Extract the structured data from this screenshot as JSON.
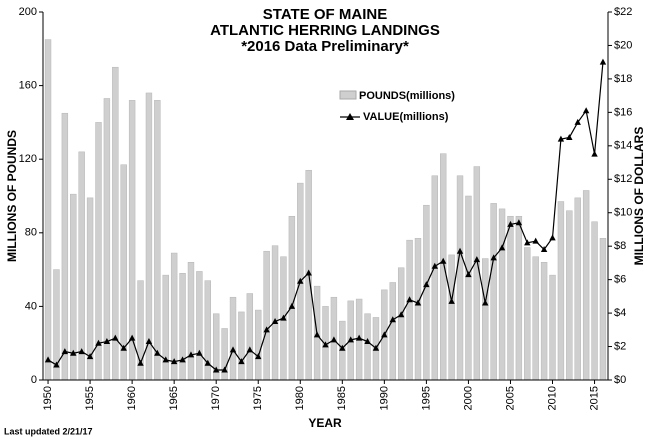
{
  "chart_data": {
    "type": "bar-line",
    "title": [
      "STATE OF MAINE",
      "ATLANTIC HERRING LANDINGS",
      "*2016 Data Preliminary*"
    ],
    "x_label": "YEAR",
    "y_label": "MILLIONS OF POUNDS",
    "y2_label": "MILLIONS OF DOLLARS",
    "note": "Last updated 2/21/17",
    "x": [
      1950,
      1951,
      1952,
      1953,
      1954,
      1955,
      1956,
      1957,
      1958,
      1959,
      1960,
      1961,
      1962,
      1963,
      1964,
      1965,
      1966,
      1967,
      1968,
      1969,
      1970,
      1971,
      1972,
      1973,
      1974,
      1975,
      1976,
      1977,
      1978,
      1979,
      1980,
      1981,
      1982,
      1983,
      1984,
      1985,
      1986,
      1987,
      1988,
      1989,
      1990,
      1991,
      1992,
      1993,
      1994,
      1995,
      1996,
      1997,
      1998,
      1999,
      2000,
      2001,
      2002,
      2003,
      2004,
      2005,
      2006,
      2007,
      2008,
      2009,
      2010,
      2011,
      2012,
      2013,
      2014,
      2015,
      2016
    ],
    "xlim": [
      1949.4,
      2016.6
    ],
    "xticks": [
      1950,
      1955,
      1960,
      1965,
      1970,
      1975,
      1980,
      1985,
      1990,
      1995,
      2000,
      2005,
      2010,
      2015
    ],
    "ylim": [
      0,
      200
    ],
    "yticks": [
      0,
      40,
      80,
      120,
      160,
      200
    ],
    "y2lim": [
      0,
      22
    ],
    "y2ticks": [
      {
        "value": 0,
        "label": "$0"
      },
      {
        "value": 2,
        "label": "$2"
      },
      {
        "value": 4,
        "label": "$4"
      },
      {
        "value": 6,
        "label": "$6"
      },
      {
        "value": 8,
        "label": "$8"
      },
      {
        "value": 10,
        "label": "$10"
      },
      {
        "value": 12,
        "label": "$12"
      },
      {
        "value": 14,
        "label": "$14"
      },
      {
        "value": 16,
        "label": "$16"
      },
      {
        "value": 18,
        "label": "$18"
      },
      {
        "value": 20,
        "label": "$20"
      },
      {
        "value": 22,
        "label": "$22"
      }
    ],
    "series": [
      {
        "name": "POUNDS(millions)",
        "color": "#cfcfcf",
        "mark": "bar",
        "values": [
          185,
          60,
          145,
          101,
          124,
          99,
          140,
          153,
          170,
          117,
          152,
          54,
          156,
          152,
          57,
          69,
          58,
          64,
          59,
          54,
          36,
          28,
          45,
          37,
          47,
          38,
          70,
          73,
          67,
          89,
          107,
          114,
          51,
          40,
          45,
          32,
          43,
          44,
          36,
          34,
          49,
          53,
          61,
          76,
          77,
          95,
          111,
          123,
          68,
          111,
          100,
          116,
          66,
          96,
          93,
          89,
          89,
          72,
          67,
          64,
          57,
          97,
          92,
          99,
          103,
          86,
          77
        ]
      },
      {
        "name": "VALUE(millions)",
        "color": "#000000",
        "mark": "line",
        "axis": "y2",
        "values": [
          1.2,
          0.9,
          1.7,
          1.6,
          1.7,
          1.4,
          2.2,
          2.3,
          2.5,
          1.9,
          2.5,
          1.0,
          2.3,
          1.6,
          1.2,
          1.1,
          1.2,
          1.5,
          1.6,
          1.0,
          0.6,
          0.6,
          1.8,
          1.1,
          1.8,
          1.4,
          3.0,
          3.5,
          3.7,
          4.4,
          5.9,
          6.4,
          2.7,
          2.1,
          2.4,
          1.9,
          2.4,
          2.5,
          2.3,
          1.9,
          2.7,
          3.6,
          3.9,
          4.8,
          4.6,
          5.7,
          6.8,
          7.1,
          4.7,
          7.7,
          6.3,
          7.2,
          4.6,
          7.3,
          7.9,
          9.3,
          9.4,
          8.2,
          8.3,
          7.8,
          8.5,
          14.4,
          14.5,
          15.4,
          16.1,
          13.5,
          19.0
        ]
      }
    ]
  }
}
